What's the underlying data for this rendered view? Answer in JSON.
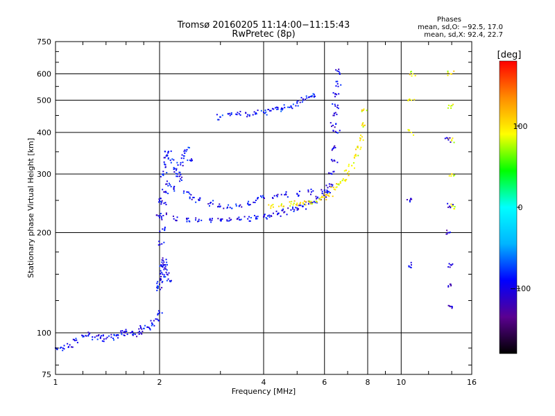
{
  "chart_data": {
    "type": "scatter",
    "title": "Tromsø 20160205 11:14:00−11:15:43",
    "subtitle": "RwPretec (8p)",
    "xlabel": "Frequency [MHz]",
    "ylabel": "Stationary phase Virtual Height [km]",
    "x_scale": "log",
    "y_scale": "log",
    "xlim": [
      1,
      16
    ],
    "ylim": [
      75,
      750
    ],
    "x_ticks": [
      1,
      2,
      4,
      6,
      8,
      10,
      16
    ],
    "x_tick_labels": [
      "1",
      "2",
      "4",
      "6",
      "8",
      "10",
      "16"
    ],
    "y_ticks": [
      75,
      100,
      200,
      300,
      400,
      500,
      600,
      750
    ],
    "y_tick_labels": [
      "75",
      "100",
      "200",
      "300",
      "400",
      "500",
      "600",
      "750"
    ],
    "grid": true,
    "info": {
      "heading": "Phases",
      "line1": "mean, sd,O: −92.5, 17.0",
      "line2": "mean, sd,X:  92.4, 22.7"
    },
    "colorbar": {
      "label": "[deg]",
      "range": [
        -180,
        180
      ],
      "ticks": [
        100,
        0,
        -100
      ],
      "tick_labels": [
        "100",
        "0",
        "−100"
      ],
      "colors": [
        "#000000",
        "#5a0090",
        "#0000ff",
        "#00b4ff",
        "#00ffff",
        "#00ff00",
        "#ffff00",
        "#ff8c00",
        "#ff0000"
      ]
    },
    "traces": [
      {
        "mode": "O",
        "phase": -95,
        "x": [
          1.0,
          1.05,
          1.1,
          1.15,
          1.2,
          1.25,
          1.3,
          1.35,
          1.4,
          1.45,
          1.5,
          1.55,
          1.6,
          1.65,
          1.7,
          1.75,
          1.8,
          1.85,
          1.9,
          1.95
        ],
        "y": [
          90,
          90,
          92,
          95,
          98,
          99,
          97,
          97,
          96,
          97,
          98,
          100,
          101,
          100,
          99,
          101,
          103,
          104,
          107,
          110
        ]
      },
      {
        "mode": "O",
        "phase": -100,
        "x": [
          2.0,
          2.01,
          2.02,
          2.03,
          2.04,
          2.05,
          2.06,
          2.07
        ],
        "y": [
          115,
          135,
          160,
          185,
          205,
          225,
          245,
          265
        ]
      },
      {
        "mode": "O",
        "phase": -98,
        "x": [
          2.0,
          2.2,
          2.4,
          2.6,
          2.8,
          3.0,
          3.2,
          3.4,
          3.6,
          3.8,
          4.0,
          4.2,
          4.4,
          4.6,
          4.8,
          5.0,
          5.2,
          5.4,
          5.6,
          5.8,
          6.0,
          6.1,
          6.2,
          6.3,
          6.4,
          6.45,
          6.5
        ],
        "y": [
          222,
          220,
          219,
          219,
          218,
          218,
          218,
          219,
          220,
          221,
          223,
          225,
          228,
          231,
          234,
          237,
          240,
          244,
          248,
          253,
          260,
          268,
          280,
          300,
          330,
          360,
          400
        ]
      },
      {
        "mode": "O",
        "phase": -95,
        "x": [
          2.0,
          2.1,
          2.2,
          2.3,
          2.4,
          2.5,
          2.6,
          2.8,
          3.0,
          3.2,
          3.4,
          3.6,
          3.8,
          4.0,
          4.3,
          4.6,
          5.0,
          5.5,
          6.0
        ],
        "y": [
          250,
          280,
          270,
          290,
          265,
          255,
          250,
          245,
          240,
          238,
          240,
          245,
          250,
          255,
          258,
          260,
          262,
          265,
          268
        ]
      },
      {
        "mode": "O",
        "phase": -92,
        "x": [
          2.05,
          2.08,
          2.1,
          2.12,
          2.15,
          2.2,
          2.25,
          2.3,
          2.35,
          2.4,
          2.45
        ],
        "y": [
          300,
          320,
          340,
          350,
          330,
          310,
          300,
          320,
          340,
          355,
          330
        ]
      },
      {
        "mode": "O",
        "phase": -95,
        "x": [
          2.0,
          2.02,
          2.04,
          2.06,
          2.08,
          2.1,
          2.12,
          2.05
        ],
        "y": [
          140,
          145,
          150,
          155,
          160,
          150,
          145,
          165
        ]
      },
      {
        "mode": "O",
        "phase": -90,
        "x": [
          3.0,
          3.2,
          3.4,
          3.6,
          3.8,
          4.0,
          4.2,
          4.4,
          4.6,
          4.8,
          5.0,
          5.2,
          5.4,
          5.6
        ],
        "y": [
          445,
          450,
          455,
          452,
          458,
          460,
          465,
          470,
          475,
          480,
          490,
          500,
          510,
          520
        ]
      },
      {
        "mode": "X",
        "phase": 95,
        "x": [
          4.2,
          4.5,
          4.8,
          5.0,
          5.2,
          5.5,
          5.8,
          6.0,
          6.2,
          6.4,
          6.6,
          6.8,
          7.0,
          7.2,
          7.4,
          7.5,
          7.6,
          7.7,
          7.8
        ],
        "y": [
          240,
          242,
          244,
          245,
          246,
          248,
          252,
          256,
          262,
          270,
          280,
          290,
          302,
          318,
          340,
          360,
          385,
          420,
          470
        ]
      },
      {
        "mode": "O",
        "phase": -100,
        "x": [
          6.35,
          6.4,
          6.45,
          6.5,
          6.55,
          6.6
        ],
        "y": [
          420,
          450,
          480,
          520,
          560,
          610
        ]
      },
      {
        "mode": "X",
        "phase": 90,
        "x": [
          10.7,
          10.7,
          10.8,
          13.9,
          13.9,
          14.0,
          14.0,
          14.0
        ],
        "y": [
          400,
          500,
          600,
          600,
          480,
          380,
          300,
          240
        ]
      },
      {
        "mode": "O",
        "phase": -105,
        "x": [
          10.6,
          10.7,
          13.7,
          13.8,
          13.8,
          13.9,
          13.9,
          14.0
        ],
        "y": [
          250,
          160,
          380,
          240,
          200,
          160,
          140,
          120
        ]
      }
    ]
  }
}
